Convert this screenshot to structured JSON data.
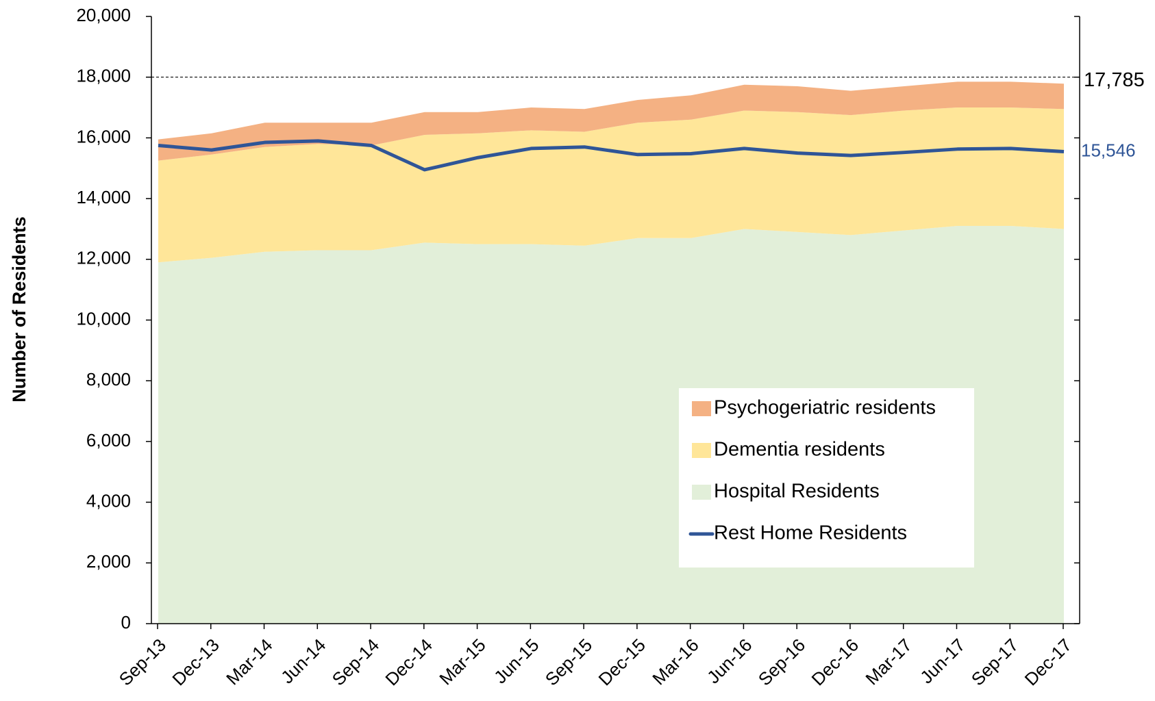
{
  "chart_data": {
    "type": "stacked_area_line",
    "y_label": "Number of Residents",
    "categories": [
      "Sep-13",
      "Dec-13",
      "Mar-14",
      "Jun-14",
      "Sep-14",
      "Dec-14",
      "Mar-15",
      "Jun-15",
      "Sep-15",
      "Dec-15",
      "Mar-16",
      "Jun-16",
      "Sep-16",
      "Dec-16",
      "Mar-17",
      "Jun-17",
      "Sep-17",
      "Dec-17"
    ],
    "series": [
      {
        "name": "Hospital Residents",
        "kind": "area",
        "color": "#e2efd9",
        "values": [
          11900,
          12050,
          12250,
          12300,
          12300,
          12550,
          12500,
          12500,
          12450,
          12700,
          12700,
          13000,
          12900,
          12800,
          12950,
          13100,
          13100,
          13000
        ]
      },
      {
        "name": "Dementia residents",
        "kind": "area",
        "color": "#ffe699",
        "values": [
          3350,
          3400,
          3450,
          3500,
          3450,
          3550,
          3650,
          3750,
          3750,
          3800,
          3900,
          3900,
          3950,
          3950,
          3950,
          3900,
          3900,
          3950
        ]
      },
      {
        "name": "Psychogeriatric residents",
        "kind": "area",
        "color": "#f4b183",
        "values": [
          700,
          700,
          800,
          700,
          750,
          750,
          700,
          750,
          750,
          750,
          800,
          850,
          850,
          800,
          800,
          850,
          850,
          835
        ]
      },
      {
        "name": "Rest Home Residents",
        "kind": "line",
        "color": "#2f5597",
        "values": [
          15750,
          15600,
          15850,
          15900,
          15750,
          14950,
          15350,
          15650,
          15700,
          15450,
          15480,
          15650,
          15500,
          15420,
          15520,
          15630,
          15650,
          15546
        ],
        "value_labels": [
          null,
          null,
          null,
          null,
          null,
          null,
          null,
          null,
          null,
          null,
          null,
          null,
          null,
          null,
          null,
          null,
          null,
          "15,546"
        ]
      }
    ],
    "total_label": "17,785",
    "reference_line": 18000,
    "ylim": [
      0,
      20000
    ],
    "yticks": [
      0,
      {
        "value": 2000,
        "label": "2,000"
      },
      {
        "value": 4000,
        "label": "4,000"
      },
      {
        "value": 6000,
        "label": "6,000"
      },
      {
        "value": 8000,
        "label": "8,000"
      },
      {
        "value": 10000,
        "label": "10,000"
      },
      {
        "value": 12000,
        "label": "12,000"
      },
      {
        "value": 14000,
        "label": "14,000"
      },
      {
        "value": 16000,
        "label": "16,000"
      },
      {
        "value": 18000,
        "label": "18,000"
      },
      {
        "value": 20000,
        "label": "20,000"
      }
    ],
    "legend": "lower right"
  }
}
